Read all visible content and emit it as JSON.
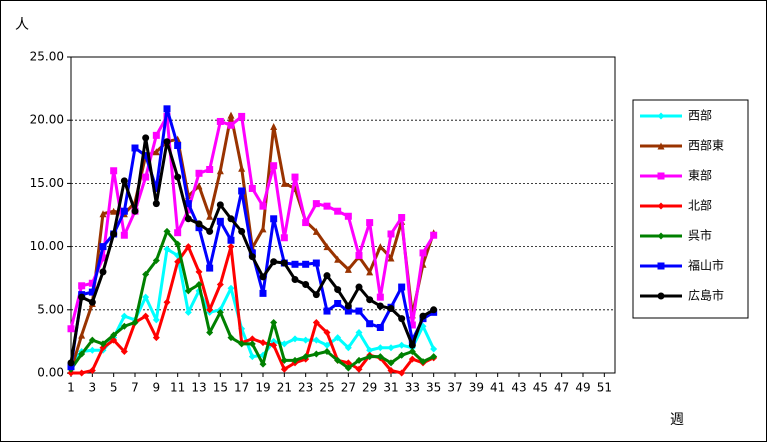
{
  "chart_data": {
    "type": "line",
    "y_label": "人",
    "x_label": "週",
    "x": [
      1,
      2,
      3,
      4,
      5,
      6,
      7,
      8,
      9,
      10,
      11,
      12,
      13,
      14,
      15,
      16,
      17,
      18,
      19,
      20,
      21,
      22,
      23,
      24,
      25,
      26,
      27,
      28,
      29,
      30,
      31,
      32,
      33,
      34,
      35
    ],
    "xlim": [
      1,
      52
    ],
    "xticks": [
      1,
      3,
      5,
      7,
      9,
      11,
      13,
      15,
      17,
      19,
      21,
      23,
      25,
      27,
      29,
      31,
      33,
      35,
      37,
      39,
      41,
      43,
      45,
      47,
      49,
      51
    ],
    "ylim": [
      0,
      25
    ],
    "yticks": [
      {
        "value": 0,
        "label": "0.00"
      },
      {
        "value": 5,
        "label": "5.00"
      },
      {
        "value": 10,
        "label": "10.00"
      },
      {
        "value": 15,
        "label": "15.00"
      },
      {
        "value": 20,
        "label": "20.00"
      },
      {
        "value": 25,
        "label": "25.00"
      }
    ],
    "grid": true,
    "legend": "right",
    "series": [
      {
        "name": "西部",
        "color": "#00ffff",
        "marker": "diamond",
        "values": [
          0.7,
          1.7,
          1.8,
          1.8,
          2.8,
          4.5,
          4.2,
          6,
          4.2,
          9.8,
          9.3,
          4.8,
          6.5,
          4.8,
          5,
          6.7,
          3.5,
          1.3,
          1.4,
          2.5,
          2.3,
          2.7,
          2.6,
          2.6,
          2.2,
          2.8,
          2,
          3.2,
          1.8,
          2,
          2,
          2.2,
          2,
          3.7,
          1.9
        ]
      },
      {
        "name": "西部東",
        "color": "#993300",
        "marker": "triangle",
        "values": [
          0.2,
          3,
          5.5,
          12.6,
          12.8,
          12.6,
          13.5,
          17.2,
          17.5,
          18.3,
          18.5,
          14,
          14.8,
          12.4,
          16,
          20.4,
          16.2,
          9.9,
          11.4,
          19.5,
          15,
          14.6,
          12,
          11.2,
          10,
          9,
          8.2,
          9.2,
          8,
          10,
          9.1,
          12,
          4.6,
          8.6,
          11.1
        ]
      },
      {
        "name": "東部",
        "color": "#ff00ff",
        "marker": "square",
        "values": [
          3.5,
          6.9,
          7.1,
          9.1,
          16,
          10.9,
          12.8,
          15.5,
          18.8,
          20.3,
          11.1,
          12.9,
          15.8,
          16.1,
          19.9,
          19.6,
          20.3,
          14.6,
          13.2,
          16.4,
          10.7,
          15.5,
          11.9,
          13.4,
          13.2,
          12.8,
          12.4,
          9.3,
          11.9,
          6,
          11,
          12.3,
          3.8,
          9.5,
          10.9
        ]
      },
      {
        "name": "北部",
        "color": "#ff0000",
        "marker": "diamond",
        "values": [
          0,
          0,
          0.2,
          2,
          2.6,
          1.7,
          4,
          4.5,
          2.8,
          5.6,
          8.8,
          10,
          8,
          5,
          7,
          10,
          2.4,
          2.7,
          2.4,
          2.2,
          0.3,
          0.8,
          1.1,
          4,
          3.2,
          1,
          0.8,
          0.3,
          1.4,
          1.2,
          0.2,
          0,
          1.1,
          0.8,
          1.2
        ]
      },
      {
        "name": "呉市",
        "color": "#008000",
        "marker": "diamond",
        "values": [
          0.3,
          1.5,
          2.6,
          2.3,
          3,
          3.7,
          4,
          7.8,
          8.9,
          11.2,
          10.2,
          6.5,
          7,
          3.2,
          4.8,
          2.8,
          2.3,
          2.3,
          0.7,
          4,
          1,
          1,
          1.3,
          1.5,
          1.7,
          1,
          0.4,
          1,
          1.3,
          1.3,
          0.8,
          1.4,
          1.7,
          0.9,
          1.3
        ]
      },
      {
        "name": "福山市",
        "color": "#0000ff",
        "marker": "square",
        "values": [
          0.5,
          6.2,
          6.4,
          10,
          11,
          12.8,
          17.8,
          17.2,
          14.6,
          20.9,
          18,
          13.4,
          11.5,
          8.3,
          12,
          10.5,
          14.4,
          9.5,
          6.3,
          12.2,
          8.7,
          8.6,
          8.6,
          8.7,
          4.9,
          5.5,
          4.9,
          4.9,
          3.9,
          3.6,
          5.2,
          6.8,
          2.6,
          4.3,
          4.8
        ]
      },
      {
        "name": "広島市",
        "color": "#000000",
        "marker": "circle",
        "values": [
          0.8,
          6,
          5.6,
          8,
          11,
          15.2,
          12.8,
          18.6,
          13.4,
          18.3,
          15.5,
          12.2,
          11.8,
          11.2,
          13.3,
          12.2,
          11.2,
          9.2,
          7.6,
          8.8,
          8.7,
          7.4,
          7,
          6.2,
          7.7,
          6.6,
          5.3,
          6.8,
          5.8,
          5.3,
          5.1,
          4.3,
          2.2,
          4.5,
          5
        ]
      }
    ]
  }
}
